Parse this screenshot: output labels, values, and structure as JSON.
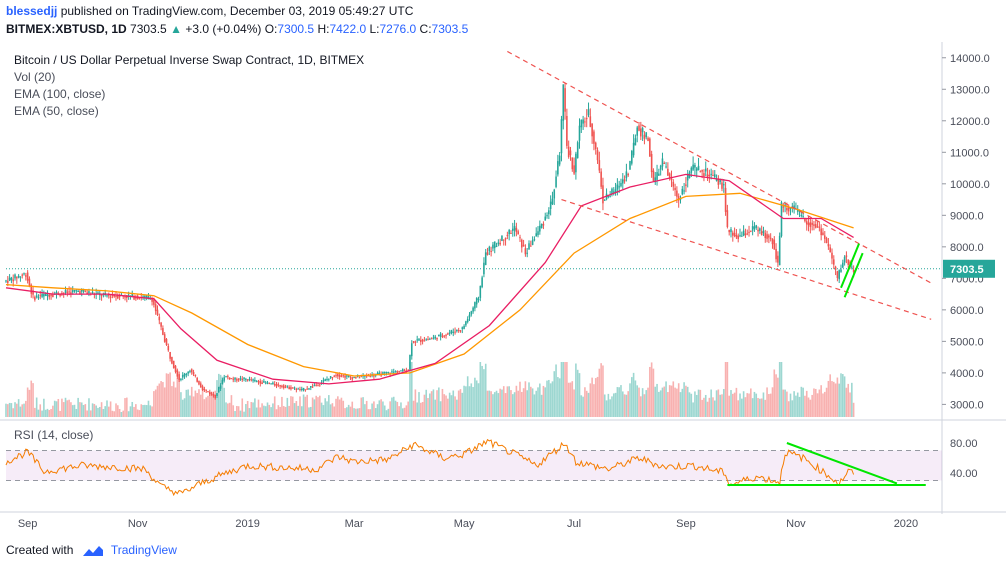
{
  "header": {
    "user": "blessedjj",
    "published": "published on TradingView.com, December 03, 2019 05:49:27 UTC",
    "symbol": "BITMEX:XBTUSD, 1D",
    "price": "7303.5",
    "arrow": "▲",
    "change": "+3.0 (+0.04%)",
    "o_label": "O:",
    "o": "7300.5",
    "h_label": "H:",
    "h": "7422.0",
    "l_label": "L:",
    "l": "7276.0",
    "c_label": "C:",
    "c": "7303.5"
  },
  "legend": {
    "title": "Bitcoin / US Dollar Perpetual Inverse Swap Contract, 1D, BITMEX",
    "vol": "Vol (20)",
    "ema100": "EMA (100, close)",
    "ema50": "EMA (50, close)"
  },
  "rsi_label": "RSI (14, close)",
  "footer": {
    "created": "Created with",
    "brand": "TradingView"
  },
  "colors": {
    "up": "#26a69a",
    "down": "#ef5350",
    "ema50": "#e91e63",
    "ema100": "#ff9800",
    "rsi": "#f57c00",
    "trend_red": "#ef5350",
    "trend_green": "#00e600",
    "price_tag": "#26a69a"
  },
  "chart_data": {
    "type": "candlestick",
    "price_axis": {
      "ticks": [
        3000,
        4000,
        5000,
        6000,
        7000,
        8000,
        9000,
        10000,
        11000,
        12000,
        13000,
        14000
      ],
      "tick_labels": [
        "3000.0",
        "4000.0",
        "5000.0",
        "6000.0",
        "7000.0",
        "8000.0",
        "9000.0",
        "10000.0",
        "11000.0",
        "12000.0",
        "13000.0",
        "14000.0"
      ],
      "ylim": [
        2600,
        14500
      ]
    },
    "last_price": "7303.5",
    "time_axis": {
      "labels": [
        "Sep",
        "Nov",
        "2019",
        "Mar",
        "May",
        "Jul",
        "Sep",
        "Nov",
        "2020"
      ]
    },
    "rsi_axis": {
      "tick_labels": [
        "80.00",
        "40.00"
      ],
      "overbought": 70,
      "oversold": 30
    },
    "price_path": [
      [
        "2018-08-20",
        6900
      ],
      [
        "2018-09-01",
        7150
      ],
      [
        "2018-09-05",
        6400
      ],
      [
        "2018-09-15",
        6500
      ],
      [
        "2018-10-01",
        6600
      ],
      [
        "2018-10-15",
        6450
      ],
      [
        "2018-10-25",
        6450
      ],
      [
        "2018-11-05",
        6400
      ],
      [
        "2018-11-10",
        6350
      ],
      [
        "2018-11-14",
        5600
      ],
      [
        "2018-11-20",
        4500
      ],
      [
        "2018-11-25",
        3800
      ],
      [
        "2018-12-01",
        4100
      ],
      [
        "2018-12-08",
        3500
      ],
      [
        "2018-12-15",
        3250
      ],
      [
        "2018-12-20",
        3900
      ],
      [
        "2018-12-25",
        3800
      ],
      [
        "2019-01-01",
        3800
      ],
      [
        "2019-01-10",
        3700
      ],
      [
        "2019-01-20",
        3600
      ],
      [
        "2019-02-01",
        3450
      ],
      [
        "2019-02-10",
        3650
      ],
      [
        "2019-02-20",
        3950
      ],
      [
        "2019-03-01",
        3850
      ],
      [
        "2019-03-15",
        3950
      ],
      [
        "2019-04-01",
        4100
      ],
      [
        "2019-04-03",
        5000
      ],
      [
        "2019-04-15",
        5100
      ],
      [
        "2019-04-25",
        5300
      ],
      [
        "2019-05-01",
        5400
      ],
      [
        "2019-05-10",
        6400
      ],
      [
        "2019-05-14",
        7800
      ],
      [
        "2019-05-20",
        8100
      ],
      [
        "2019-05-30",
        8600
      ],
      [
        "2019-06-05",
        7800
      ],
      [
        "2019-06-15",
        8800
      ],
      [
        "2019-06-20",
        9500
      ],
      [
        "2019-06-24",
        11000
      ],
      [
        "2019-06-26",
        13000
      ],
      [
        "2019-06-28",
        11200
      ],
      [
        "2019-07-02",
        10400
      ],
      [
        "2019-07-05",
        11800
      ],
      [
        "2019-07-10",
        12200
      ],
      [
        "2019-07-15",
        10800
      ],
      [
        "2019-07-18",
        9500
      ],
      [
        "2019-07-25",
        9800
      ],
      [
        "2019-08-01",
        10400
      ],
      [
        "2019-08-06",
        11800
      ],
      [
        "2019-08-12",
        11400
      ],
      [
        "2019-08-15",
        10000
      ],
      [
        "2019-08-20",
        10700
      ],
      [
        "2019-08-29",
        9500
      ],
      [
        "2019-09-05",
        10500
      ],
      [
        "2019-09-15",
        10300
      ],
      [
        "2019-09-23",
        9900
      ],
      [
        "2019-09-25",
        8500
      ],
      [
        "2019-10-01",
        8300
      ],
      [
        "2019-10-10",
        8600
      ],
      [
        "2019-10-20",
        8200
      ],
      [
        "2019-10-23",
        7450
      ],
      [
        "2019-10-25",
        9300
      ],
      [
        "2019-11-01",
        9200
      ],
      [
        "2019-11-08",
        8800
      ],
      [
        "2019-11-15",
        8600
      ],
      [
        "2019-11-20",
        8000
      ],
      [
        "2019-11-25",
        7000
      ],
      [
        "2019-11-29",
        7700
      ],
      [
        "2019-12-03",
        7303.5
      ]
    ],
    "ema50_path": [
      [
        "2018-08-20",
        6700
      ],
      [
        "2018-09-15",
        6500
      ],
      [
        "2018-10-15",
        6500
      ],
      [
        "2018-11-10",
        6350
      ],
      [
        "2018-11-25",
        5400
      ],
      [
        "2018-12-15",
        4400
      ],
      [
        "2019-01-15",
        3800
      ],
      [
        "2019-02-15",
        3650
      ],
      [
        "2019-03-15",
        3800
      ],
      [
        "2019-04-15",
        4300
      ],
      [
        "2019-05-15",
        5500
      ],
      [
        "2019-06-15",
        7500
      ],
      [
        "2019-07-05",
        9300
      ],
      [
        "2019-08-01",
        9900
      ],
      [
        "2019-09-01",
        10300
      ],
      [
        "2019-09-25",
        10100
      ],
      [
        "2019-10-25",
        8900
      ],
      [
        "2019-11-15",
        8900
      ],
      [
        "2019-12-03",
        8300
      ]
    ],
    "ema100_path": [
      [
        "2018-08-20",
        6800
      ],
      [
        "2018-09-15",
        6700
      ],
      [
        "2018-10-15",
        6600
      ],
      [
        "2018-11-10",
        6450
      ],
      [
        "2018-12-01",
        5900
      ],
      [
        "2019-01-01",
        4900
      ],
      [
        "2019-02-01",
        4200
      ],
      [
        "2019-03-01",
        3900
      ],
      [
        "2019-04-01",
        4000
      ],
      [
        "2019-05-01",
        4600
      ],
      [
        "2019-06-01",
        6000
      ],
      [
        "2019-07-01",
        7800
      ],
      [
        "2019-08-01",
        8900
      ],
      [
        "2019-09-01",
        9600
      ],
      [
        "2019-10-01",
        9700
      ],
      [
        "2019-11-01",
        9200
      ],
      [
        "2019-12-03",
        8600
      ]
    ],
    "rsi_path": [
      [
        "2018-08-20",
        55
      ],
      [
        "2018-09-01",
        68
      ],
      [
        "2018-09-10",
        42
      ],
      [
        "2018-10-01",
        50
      ],
      [
        "2018-10-20",
        48
      ],
      [
        "2018-11-05",
        45
      ],
      [
        "2018-11-14",
        22
      ],
      [
        "2018-11-25",
        12
      ],
      [
        "2018-12-05",
        25
      ],
      [
        "2018-12-18",
        38
      ],
      [
        "2019-01-01",
        50
      ],
      [
        "2019-01-15",
        48
      ],
      [
        "2019-02-08",
        45
      ],
      [
        "2019-02-20",
        62
      ],
      [
        "2019-03-01",
        55
      ],
      [
        "2019-03-20",
        58
      ],
      [
        "2019-04-03",
        78
      ],
      [
        "2019-04-20",
        60
      ],
      [
        "2019-05-01",
        65
      ],
      [
        "2019-05-14",
        82
      ],
      [
        "2019-05-30",
        64
      ],
      [
        "2019-06-10",
        50
      ],
      [
        "2019-06-26",
        80
      ],
      [
        "2019-07-02",
        55
      ],
      [
        "2019-07-20",
        45
      ],
      [
        "2019-08-06",
        60
      ],
      [
        "2019-08-20",
        48
      ],
      [
        "2019-09-05",
        50
      ],
      [
        "2019-09-23",
        40
      ],
      [
        "2019-09-25",
        24
      ],
      [
        "2019-10-10",
        35
      ],
      [
        "2019-10-23",
        28
      ],
      [
        "2019-10-26",
        68
      ],
      [
        "2019-11-05",
        60
      ],
      [
        "2019-11-20",
        35
      ],
      [
        "2019-11-25",
        26
      ],
      [
        "2019-11-30",
        42
      ],
      [
        "2019-12-03",
        40
      ]
    ],
    "trendlines_price": [
      {
        "color": "red",
        "dashed": true,
        "from": [
          "2019-05-25",
          14200
        ],
        "to": [
          "2020-01-15",
          6850
        ]
      },
      {
        "color": "red",
        "dashed": true,
        "from": [
          "2019-06-24",
          9500
        ],
        "to": [
          "2020-01-15",
          5700
        ]
      },
      {
        "color": "green",
        "dashed": false,
        "from": [
          "2019-11-26",
          6700
        ],
        "to": [
          "2019-12-06",
          8100
        ]
      },
      {
        "color": "green",
        "dashed": false,
        "from": [
          "2019-11-28",
          6400
        ],
        "to": [
          "2019-12-08",
          7800
        ]
      }
    ],
    "trendlines_rsi": [
      {
        "color": "green",
        "from": [
          "2019-10-27",
          80
        ],
        "to": [
          "2019-12-27",
          26
        ]
      },
      {
        "color": "green",
        "from": [
          "2019-09-24",
          24
        ],
        "to": [
          "2020-01-12",
          24
        ]
      }
    ]
  }
}
